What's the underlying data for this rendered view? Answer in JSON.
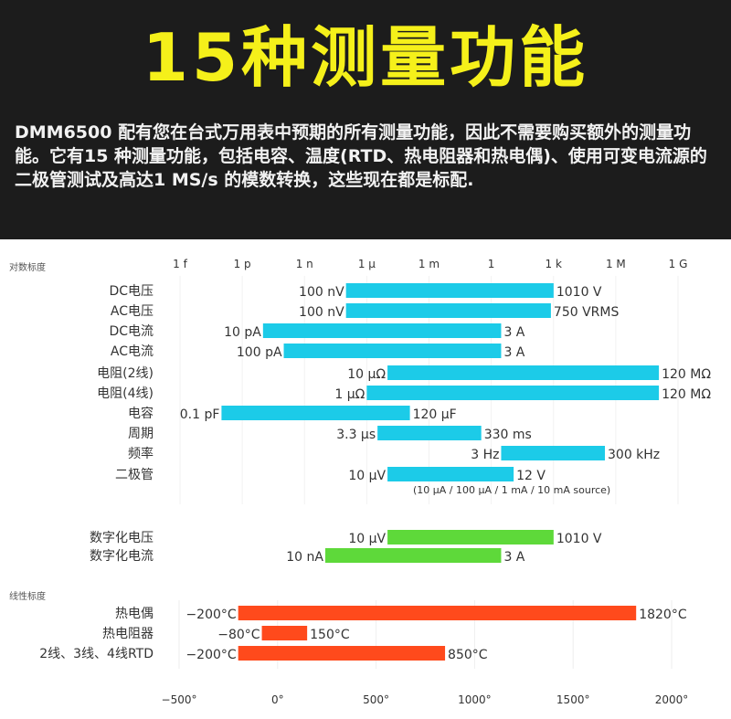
{
  "header": {
    "title": "15种测量功能",
    "description": "DMM6500 配有您在台式万用表中预期的所有测量功能，因此不需要购买额外的测量功能。它有15 种测量功能，包括电容、温度(RTD、热电阻器和热电偶)、使用可变电流源的二极管测试及高达1 MS/s 的模数转换，这些现在都是标配."
  },
  "chart_data": [
    {
      "type": "bar",
      "orientation": "horizontal-range",
      "scale_label": "对数标度",
      "x_scale": "log",
      "xlim": [
        1e-15,
        1000000000.0
      ],
      "tick_labels": [
        "1 f",
        "1 p",
        "1 n",
        "1 μ",
        "1 m",
        "1",
        "1 k",
        "1 M",
        "1 G"
      ],
      "colors": {
        "measure": "#1ccbe8",
        "digitize": "#5ed93a"
      },
      "series": [
        {
          "label": "DC电压",
          "start": 1e-07,
          "end": 1010,
          "start_label": "100 nV",
          "end_label": "1010 V",
          "group": "measure"
        },
        {
          "label": "AC电压",
          "start": 1e-07,
          "end": 750,
          "start_label": "100 nV",
          "end_label": "750 VRMS",
          "group": "measure"
        },
        {
          "label": "DC电流",
          "start": 1e-11,
          "end": 3,
          "start_label": "10 pA",
          "end_label": "3 A",
          "group": "measure"
        },
        {
          "label": "AC电流",
          "start": 1e-10,
          "end": 3,
          "start_label": "100 pA",
          "end_label": "3 A",
          "group": "measure"
        },
        {
          "label": "电阻(2线)",
          "start": 1e-05,
          "end": 120000000.0,
          "start_label": "10 μΩ",
          "end_label": "120 MΩ",
          "group": "measure"
        },
        {
          "label": "电阻(4线)",
          "start": 1e-06,
          "end": 120000000.0,
          "start_label": "1 μΩ",
          "end_label": "120 MΩ",
          "group": "measure"
        },
        {
          "label": "电容",
          "start": 1e-13,
          "end": 0.00012,
          "start_label": "0.1 pF",
          "end_label": "120 μF",
          "group": "measure"
        },
        {
          "label": "周期",
          "start": 3.3e-06,
          "end": 0.33,
          "start_label": "3.3 μs",
          "end_label": "330 ms",
          "group": "measure"
        },
        {
          "label": "频率",
          "start": 3,
          "end": 300000.0,
          "start_label": "3 Hz",
          "end_label": "300 kHz",
          "group": "measure"
        },
        {
          "label": "二极管",
          "start": 1e-05,
          "end": 12,
          "start_label": "10 μV",
          "end_label": "12 V",
          "note": "(10 μA / 100 μA / 1 mA / 10 mA source)",
          "group": "measure"
        },
        {
          "label": "数字化电压",
          "start": 1e-05,
          "end": 1010,
          "start_label": "10 μV",
          "end_label": "1010 V",
          "group": "digitize"
        },
        {
          "label": "数字化电流",
          "start": 1e-08,
          "end": 3,
          "start_label": "10 nA",
          "end_label": "3 A",
          "group": "digitize"
        }
      ]
    },
    {
      "type": "bar",
      "orientation": "horizontal-range",
      "scale_label": "线性标度",
      "x_scale": "linear",
      "xlim": [
        -500,
        2000
      ],
      "tick_labels": [
        "−500°",
        "0°",
        "500°",
        "1000°",
        "1500°",
        "2000°"
      ],
      "ticks": [
        -500,
        0,
        500,
        1000,
        1500,
        2000
      ],
      "color": "#ff4a1c",
      "series": [
        {
          "label": "热电偶",
          "start": -200,
          "end": 1820,
          "start_label": "−200°C",
          "end_label": "1820°C"
        },
        {
          "label": "热电阻器",
          "start": -80,
          "end": 150,
          "start_label": "−80°C",
          "end_label": "150°C"
        },
        {
          "label": "2线、3线、4线RTD",
          "start": -200,
          "end": 850,
          "start_label": "−200°C",
          "end_label": "850°C"
        }
      ]
    }
  ]
}
